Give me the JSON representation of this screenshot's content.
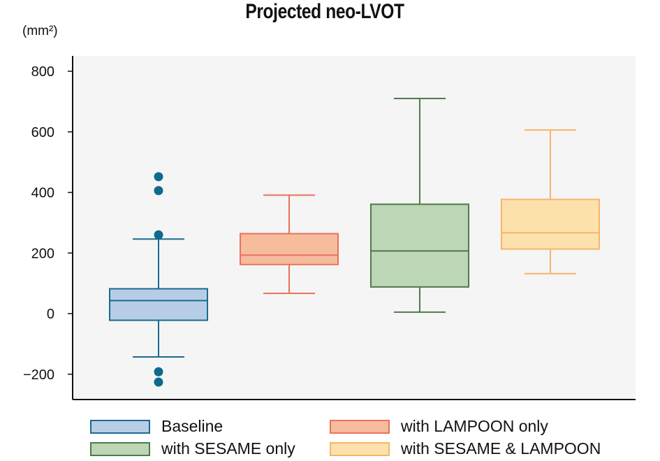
{
  "chart_data": {
    "type": "box",
    "title": "Projected neo-LVOT",
    "ylabel": "(mm²)",
    "xlabel": "",
    "ylim": [
      -280,
      830
    ],
    "yticks": [
      800,
      600,
      400,
      200,
      0,
      -200
    ],
    "ytick_labels": [
      "800",
      "600",
      "400",
      "200",
      "0",
      "−200"
    ],
    "series": [
      {
        "name": "Baseline",
        "whisker_low": -143,
        "q1": -22,
        "median": 43,
        "q3": 82,
        "whisker_high": 246,
        "outliers": [
          452,
          406,
          260,
          -192,
          -226
        ],
        "fill": "#b7cde6",
        "stroke": "#1a6b8f",
        "outlier_color": "#0d6a8c"
      },
      {
        "name": "with LAMPOON only",
        "whisker_low": 67,
        "q1": 162,
        "median": 193,
        "q3": 264,
        "whisker_high": 391,
        "outliers": [],
        "fill": "#f7bb9e",
        "stroke": "#e8735a",
        "outlier_color": "#e8735a"
      },
      {
        "name": "with SESAME only",
        "whisker_low": 5,
        "q1": 88,
        "median": 207,
        "q3": 361,
        "whisker_high": 710,
        "outliers": [],
        "fill": "#bdd6b5",
        "stroke": "#4e7a4a",
        "outlier_color": "#4e7a4a"
      },
      {
        "name": "with SESAME & LAMPOON",
        "whisker_low": 132,
        "q1": 213,
        "median": 267,
        "q3": 377,
        "whisker_high": 606,
        "outliers": [],
        "fill": "#fde1ad",
        "stroke": "#f6b46a",
        "outlier_color": "#f6b46a"
      }
    ],
    "legend": {
      "placement": "bottom",
      "entries": [
        "Baseline",
        "with LAMPOON only",
        "with SESAME only",
        "with SESAME & LAMPOON"
      ]
    },
    "plot_background": "#f5f5f5",
    "grid": false
  }
}
